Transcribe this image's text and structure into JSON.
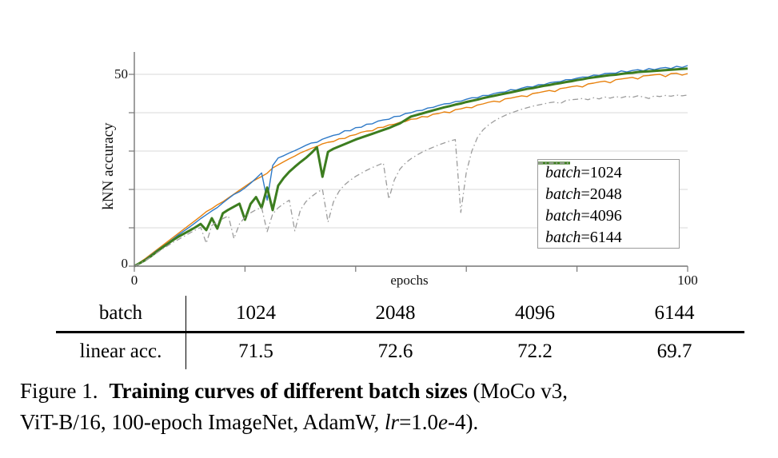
{
  "chart_data": {
    "type": "line",
    "title": "",
    "xlabel": "epochs",
    "ylabel": "kNN accuracy",
    "xlim": [
      0,
      100
    ],
    "ylim": [
      0,
      55
    ],
    "x_start": 0,
    "x_step": 1,
    "grid": "horizontal",
    "gridline_values": [
      10,
      20,
      30,
      40,
      50
    ],
    "x_tick_marks": [
      0,
      20,
      40,
      60,
      80,
      100
    ],
    "y_tick_marks": [
      0,
      10,
      20,
      30,
      40,
      50
    ],
    "x_tick_labels": [
      "0",
      "100"
    ],
    "y_tick_labels": [
      "0",
      "50"
    ],
    "legend_position": "right-middle",
    "series": [
      {
        "name": "batch-1024",
        "label": "batch=1024",
        "label_word": "batch",
        "label_rest": "=1024",
        "color": "#e8820e",
        "stroke_width": 1.4,
        "dash": null,
        "values": [
          0,
          1.0,
          2.0,
          3.1,
          4.2,
          5.3,
          6.4,
          7.5,
          8.6,
          9.7,
          10.8,
          11.9,
          13.0,
          14.2,
          15.0,
          16.0,
          16.8,
          17.8,
          18.8,
          19.8,
          20.8,
          21.8,
          22.6,
          23.4,
          24.2,
          25.6,
          26.4,
          27.2,
          28.0,
          28.7,
          29.5,
          30.1,
          30.7,
          31.2,
          31.9,
          32.3,
          32.5,
          33.2,
          33.3,
          34.0,
          34.3,
          34.9,
          35.2,
          35.3,
          36.1,
          36.2,
          36.8,
          37.0,
          37.5,
          37.7,
          38.3,
          38.4,
          39.0,
          38.9,
          39.6,
          39.8,
          40.2,
          40.0,
          40.8,
          41.0,
          41.4,
          41.3,
          42.0,
          42.3,
          42.7,
          43.0,
          42.8,
          43.6,
          43.8,
          44.1,
          44.4,
          44.2,
          45.0,
          45.2,
          45.5,
          45.8,
          45.5,
          46.3,
          46.5,
          46.8,
          47.0,
          46.7,
          47.5,
          47.7,
          48.0,
          48.2,
          47.8,
          48.6,
          48.8,
          49.0,
          49.2,
          48.8,
          49.6,
          49.7,
          49.9,
          50.0,
          49.4,
          50.2,
          50.3,
          49.8,
          50.2
        ]
      },
      {
        "name": "batch-2048",
        "label": "batch=2048",
        "label_word": "batch",
        "label_rest": "=2048",
        "color": "#2e79c7",
        "stroke_width": 1.4,
        "dash": null,
        "values": [
          0,
          0.9,
          1.8,
          2.9,
          4.0,
          5.0,
          6.0,
          7.1,
          8.2,
          9.2,
          10.2,
          11.3,
          12.4,
          13.4,
          14.4,
          15.3,
          16.5,
          17.6,
          18.7,
          19.4,
          20.4,
          21.6,
          22.9,
          24.3,
          17.2,
          26.2,
          28.2,
          28.8,
          29.5,
          30.1,
          30.8,
          31.5,
          32.1,
          32.3,
          33.1,
          33.6,
          34.1,
          34.4,
          35.3,
          35.3,
          36.1,
          36.2,
          37.0,
          37.1,
          37.8,
          38.1,
          38.3,
          39.0,
          39.1,
          39.8,
          40.0,
          40.5,
          40.6,
          41.2,
          41.4,
          41.9,
          42.3,
          42.4,
          42.9,
          43.0,
          43.5,
          43.9,
          43.9,
          44.5,
          44.5,
          45.0,
          45.3,
          45.4,
          46.0,
          45.9,
          46.4,
          46.8,
          46.7,
          47.3,
          47.3,
          47.8,
          48.0,
          48.1,
          48.6,
          48.6,
          49.0,
          49.3,
          49.3,
          49.8,
          49.7,
          50.2,
          50.3,
          50.3,
          50.9,
          50.6,
          51.0,
          51.2,
          50.9,
          51.5,
          51.2,
          51.6,
          51.8,
          51.5,
          52.1,
          51.8,
          52.3
        ]
      },
      {
        "name": "batch-4096",
        "label": "batch=4096",
        "label_word": "batch",
        "label_rest": "=4096",
        "color": "#3c7d1f",
        "stroke_width": 3,
        "dash": null,
        "values": [
          0,
          0.8,
          1.6,
          2.6,
          3.7,
          4.8,
          5.8,
          6.8,
          7.7,
          8.5,
          9.3,
          10.1,
          11.0,
          9.4,
          12.5,
          9.8,
          13.8,
          14.7,
          15.5,
          16.3,
          12.1,
          16.2,
          18.0,
          15.2,
          20.5,
          14.6,
          21.0,
          23.0,
          24.6,
          25.9,
          27.1,
          28.2,
          29.5,
          31.0,
          23.3,
          29.8,
          30.6,
          31.2,
          31.8,
          32.4,
          33.0,
          33.5,
          34.0,
          34.5,
          35.0,
          35.5,
          36.0,
          36.6,
          37.2,
          38.1,
          39.0,
          39.4,
          39.8,
          40.2,
          40.6,
          41.0,
          41.4,
          41.7,
          42.1,
          42.4,
          42.8,
          43.1,
          43.4,
          43.8,
          44.1,
          44.4,
          44.7,
          45.0,
          45.3,
          45.6,
          45.9,
          46.2,
          46.4,
          46.7,
          47.0,
          47.2,
          47.5,
          47.7,
          48.0,
          48.2,
          48.5,
          48.7,
          49.0,
          49.2,
          49.4,
          49.6,
          49.8,
          49.9,
          50.1,
          50.3,
          50.4,
          50.6,
          50.7,
          50.8,
          50.9,
          51.0,
          51.1,
          51.2,
          51.3,
          51.4,
          51.5
        ]
      },
      {
        "name": "batch-6144",
        "label": "batch=6144",
        "label_word": "batch",
        "label_rest": "=6144",
        "color": "#9c9c9c",
        "stroke_width": 1.3,
        "dash": "7 3.5 1.5 3.5",
        "values": [
          0,
          0.7,
          1.5,
          2.4,
          3.4,
          4.4,
          5.3,
          6.2,
          7.0,
          7.8,
          8.6,
          9.4,
          10.1,
          6.0,
          10.6,
          11.6,
          12.4,
          13.1,
          7.2,
          11.0,
          12.8,
          13.9,
          14.7,
          15.3,
          9.0,
          13.6,
          15.2,
          16.3,
          17.2,
          9.2,
          14.6,
          16.8,
          18.1,
          19.2,
          20.0,
          11.5,
          16.8,
          19.5,
          21.2,
          22.4,
          23.4,
          24.2,
          25.0,
          25.7,
          26.3,
          26.9,
          17.5,
          22.5,
          25.3,
          26.9,
          28.0,
          28.9,
          29.7,
          30.4,
          31.0,
          31.6,
          32.1,
          32.6,
          33.0,
          14.0,
          24.5,
          30.0,
          33.5,
          35.5,
          36.8,
          37.8,
          38.6,
          39.3,
          39.9,
          40.4,
          40.9,
          41.3,
          41.7,
          42.0,
          42.3,
          42.6,
          42.8,
          42.4,
          43.2,
          43.4,
          43.5,
          43.7,
          43.4,
          43.9,
          43.6,
          44.1,
          43.8,
          44.2,
          43.9,
          44.3,
          44.0,
          44.4,
          44.1,
          43.7,
          44.4,
          44.2,
          44.5,
          44.3,
          44.6,
          44.4,
          44.6
        ]
      }
    ]
  },
  "axes": {
    "y_top_label": "50",
    "y_bottom_label": "0",
    "x_left_label": "0",
    "x_right_label": "100",
    "x_axis_title": "epochs",
    "y_axis_title": "kNN accuracy"
  },
  "table": {
    "header_row_label": "batch",
    "value_row_label": "linear acc.",
    "columns": [
      "1024",
      "2048",
      "4096",
      "6144"
    ],
    "values": [
      "71.5",
      "72.6",
      "72.2",
      "69.7"
    ]
  },
  "caption": {
    "figure_label": "Figure 1.",
    "bold_title": "Training curves of different batch sizes",
    "line1_tail": "(MoCo v3,",
    "line2_pre": "ViT-B/16, 100-epoch ImageNet, AdamW, ",
    "lr_italic": "lr",
    "eq_part": "=1.0",
    "e_italic": "e",
    "line2_tail": "-4)."
  },
  "colors": {
    "batch_1024": "#e8820e",
    "batch_2048": "#2e79c7",
    "batch_4096": "#3c7d1f",
    "batch_6144": "#9c9c9c",
    "gridline": "#d9d9d9",
    "axis": "#777777"
  }
}
